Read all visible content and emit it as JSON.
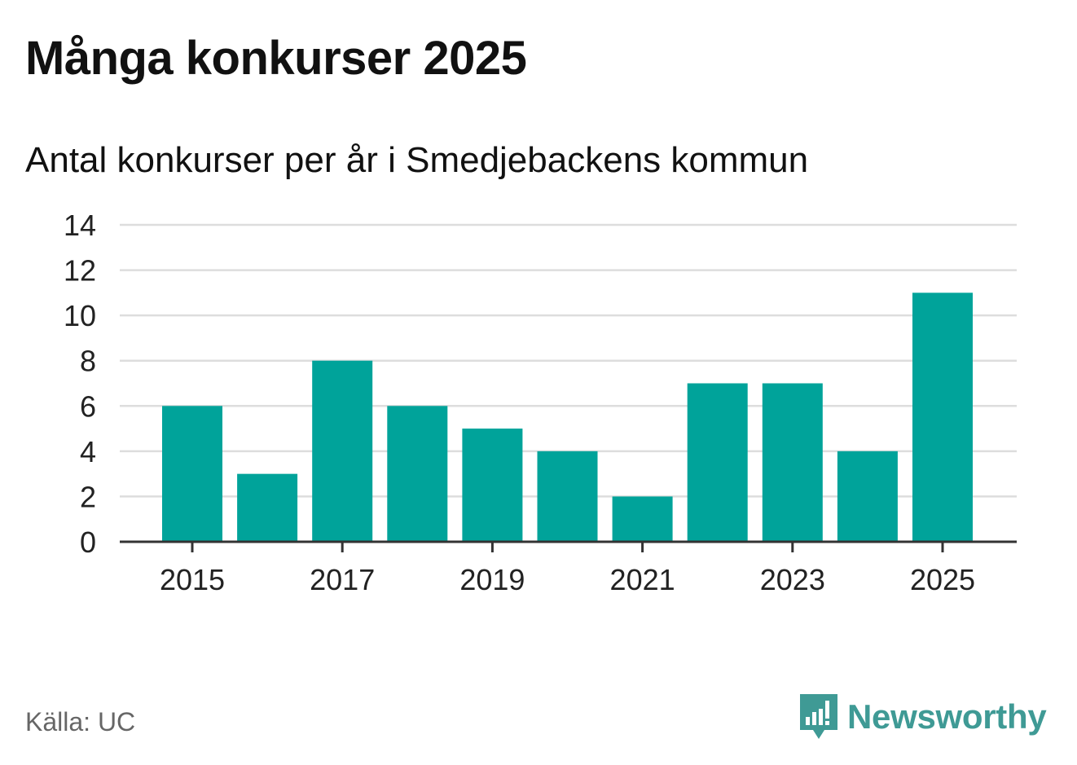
{
  "title": "Många konkurser 2025",
  "subtitle": "Antal konkurser per år i Smedjebackens kommun",
  "source": "Källa: UC",
  "brand": {
    "name": "Newsworthy",
    "color": "#3f9a95",
    "icon": "newsworthy-logo-icon"
  },
  "chart_data": {
    "type": "bar",
    "categories": [
      "2015",
      "2016",
      "2017",
      "2018",
      "2019",
      "2020",
      "2021",
      "2022",
      "2023",
      "2024",
      "2025"
    ],
    "values": [
      6,
      3,
      8,
      6,
      5,
      4,
      2,
      7,
      7,
      4,
      11
    ],
    "xtick_labels": [
      "2015",
      "2017",
      "2019",
      "2021",
      "2023",
      "2025"
    ],
    "ylim": [
      0,
      14
    ],
    "yticks": [
      0,
      2,
      4,
      6,
      8,
      10,
      12,
      14
    ],
    "grid": true,
    "legend": "none",
    "bar_color": "#00a39a"
  }
}
